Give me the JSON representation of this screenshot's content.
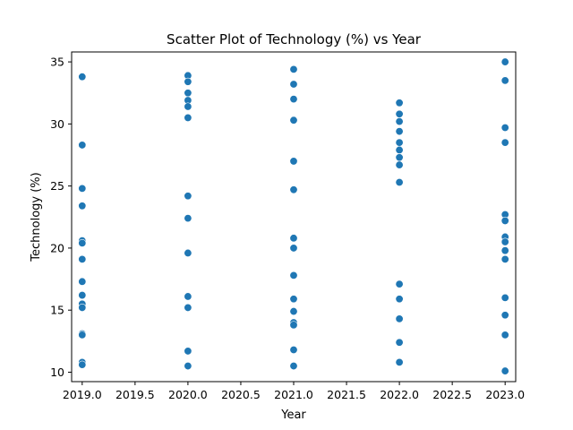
{
  "chart_data": {
    "type": "scatter",
    "title": "Scatter Plot of Technology (%) vs Year",
    "xlabel": "Year",
    "ylabel": "Technology (%)",
    "xlim": [
      2018.9,
      2023.1
    ],
    "ylim": [
      9.24,
      35.8
    ],
    "xticks": [
      "2019.0",
      "2019.5",
      "2020.0",
      "2020.5",
      "2021.0",
      "2021.5",
      "2022.0",
      "2022.5",
      "2023.0"
    ],
    "yticks": [
      "10",
      "15",
      "20",
      "25",
      "30",
      "35"
    ],
    "grid": false,
    "legend": "none",
    "marker_color": "#1f77b4",
    "points": [
      {
        "x": 2019,
        "y": 33.8
      },
      {
        "x": 2019,
        "y": 28.3
      },
      {
        "x": 2019,
        "y": 24.8
      },
      {
        "x": 2019,
        "y": 23.4
      },
      {
        "x": 2019,
        "y": 20.6
      },
      {
        "x": 2019,
        "y": 20.4
      },
      {
        "x": 2019,
        "y": 19.1
      },
      {
        "x": 2019,
        "y": 17.3
      },
      {
        "x": 2019,
        "y": 16.2
      },
      {
        "x": 2019,
        "y": 15.5
      },
      {
        "x": 2019,
        "y": 15.2
      },
      {
        "x": 2019,
        "y": 13.1
      },
      {
        "x": 2019,
        "y": 13.0
      },
      {
        "x": 2019,
        "y": 10.8
      },
      {
        "x": 2019,
        "y": 10.6
      },
      {
        "x": 2020,
        "y": 33.9
      },
      {
        "x": 2020,
        "y": 33.4
      },
      {
        "x": 2020,
        "y": 32.5
      },
      {
        "x": 2020,
        "y": 31.9
      },
      {
        "x": 2020,
        "y": 31.4
      },
      {
        "x": 2020,
        "y": 30.5
      },
      {
        "x": 2020,
        "y": 24.2
      },
      {
        "x": 2020,
        "y": 22.4
      },
      {
        "x": 2020,
        "y": 19.6
      },
      {
        "x": 2020,
        "y": 16.1
      },
      {
        "x": 2020,
        "y": 15.2
      },
      {
        "x": 2020,
        "y": 11.7
      },
      {
        "x": 2020,
        "y": 10.5
      },
      {
        "x": 2021,
        "y": 34.4
      },
      {
        "x": 2021,
        "y": 33.2
      },
      {
        "x": 2021,
        "y": 32.0
      },
      {
        "x": 2021,
        "y": 30.3
      },
      {
        "x": 2021,
        "y": 27.0
      },
      {
        "x": 2021,
        "y": 24.7
      },
      {
        "x": 2021,
        "y": 20.8
      },
      {
        "x": 2021,
        "y": 20.0
      },
      {
        "x": 2021,
        "y": 17.8
      },
      {
        "x": 2021,
        "y": 15.9
      },
      {
        "x": 2021,
        "y": 14.9
      },
      {
        "x": 2021,
        "y": 14.0
      },
      {
        "x": 2021,
        "y": 13.8
      },
      {
        "x": 2021,
        "y": 11.8
      },
      {
        "x": 2021,
        "y": 10.5
      },
      {
        "x": 2022,
        "y": 31.7
      },
      {
        "x": 2022,
        "y": 30.8
      },
      {
        "x": 2022,
        "y": 30.2
      },
      {
        "x": 2022,
        "y": 29.4
      },
      {
        "x": 2022,
        "y": 28.5
      },
      {
        "x": 2022,
        "y": 27.9
      },
      {
        "x": 2022,
        "y": 27.3
      },
      {
        "x": 2022,
        "y": 26.7
      },
      {
        "x": 2022,
        "y": 25.3
      },
      {
        "x": 2022,
        "y": 17.1
      },
      {
        "x": 2022,
        "y": 15.9
      },
      {
        "x": 2022,
        "y": 14.3
      },
      {
        "x": 2022,
        "y": 12.4
      },
      {
        "x": 2022,
        "y": 10.8
      },
      {
        "x": 2023,
        "y": 35.0
      },
      {
        "x": 2023,
        "y": 33.5
      },
      {
        "x": 2023,
        "y": 29.7
      },
      {
        "x": 2023,
        "y": 28.5
      },
      {
        "x": 2023,
        "y": 22.7
      },
      {
        "x": 2023,
        "y": 22.2
      },
      {
        "x": 2023,
        "y": 20.9
      },
      {
        "x": 2023,
        "y": 20.5
      },
      {
        "x": 2023,
        "y": 19.8
      },
      {
        "x": 2023,
        "y": 19.1
      },
      {
        "x": 2023,
        "y": 16.0
      },
      {
        "x": 2023,
        "y": 14.6
      },
      {
        "x": 2023,
        "y": 13.0
      },
      {
        "x": 2023,
        "y": 10.1
      }
    ]
  }
}
